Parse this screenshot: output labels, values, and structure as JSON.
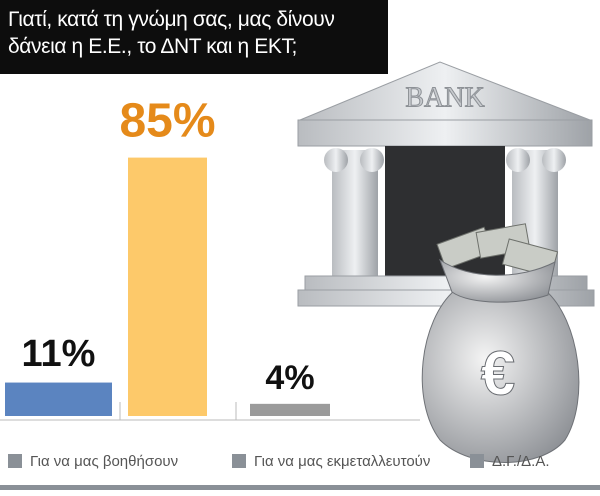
{
  "chart_data": {
    "type": "bar",
    "title": "Γιατί, κατά τη γνώμη σας, μας δίνουν δάνεια η Ε.Ε., το ΔΝΤ και η ΕΚΤ;",
    "categories": [
      "Για να μας βοηθήσουν",
      "Για να μας εκμεταλλευτούν",
      "Δ.Γ./Δ.Α."
    ],
    "values": [
      11,
      85,
      4
    ],
    "value_labels": [
      "11%",
      "85%",
      "4%"
    ],
    "colors": [
      "#5b84c0",
      "#fdc96a",
      "#9b9b9b"
    ],
    "label_colors": [
      "#111111",
      "#e58a1a",
      "#111111"
    ],
    "legend_color": "#8a9097",
    "illustration": {
      "bank_sign": "BANK",
      "currency_symbol": "€"
    }
  }
}
